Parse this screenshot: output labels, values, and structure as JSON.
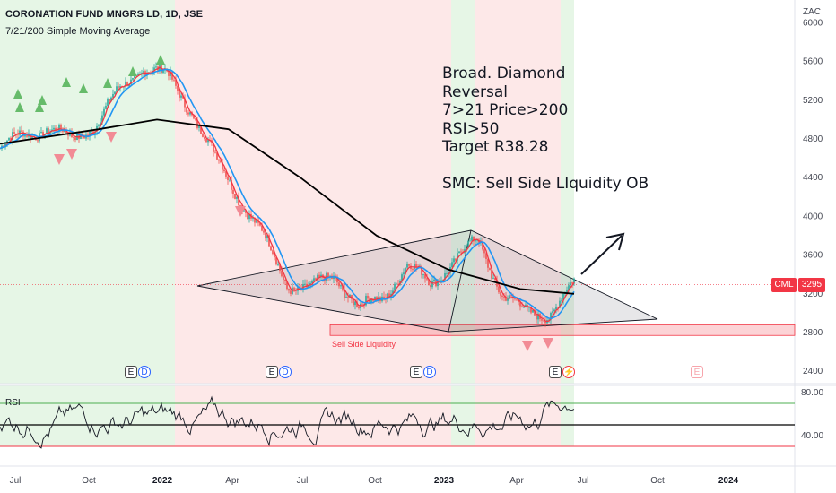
{
  "header": {
    "title": "CORONATION FUND MNGRS LD, 1D, JSE",
    "indicator": "7/21/200 Simple Moving Average"
  },
  "currency": "ZAC",
  "annotation_lines": [
    "Broad. Diamond",
    "Reversal",
    "7>21 Price>200",
    "RSI>50",
    "Target R38.28",
    "",
    "SMC: Sell Side LIquidity OB"
  ],
  "symbol_tag": "CML",
  "last_price": "3295",
  "sell_side_label": "Sell Side Liquidity",
  "rsi_label": "RSI",
  "event_markers": {
    "earnings": "E",
    "dividend": "D"
  },
  "colors": {
    "bull_candle": "#26a69a",
    "bear_candle": "#ef5350",
    "sma7": "#f23645",
    "sma21": "#2196f3",
    "sma200": "#000000",
    "bg_green": "#e6f6e6",
    "bg_red": "#fde8e8",
    "rsi_upper": "#4caf50",
    "rsi_lower": "#f23645"
  },
  "chart_data": [
    {
      "type": "candlestick",
      "title": "CORONATION FUND MNGRS LD, 1D, JSE",
      "y_axis": {
        "ticks": [
          2400,
          2800,
          3200,
          3600,
          4000,
          4400,
          4800,
          5200,
          5600,
          6000
        ],
        "range": [
          2250,
          6150
        ]
      },
      "x_axis": {
        "labels": [
          "Jul",
          "Oct",
          "2022",
          "Apr",
          "Jul",
          "Oct",
          "2023",
          "Apr",
          "Jul",
          "Oct",
          "2024"
        ]
      },
      "series": [
        {
          "name": "Price",
          "x": [
            "2021-06",
            "2021-07",
            "2021-08",
            "2021-09",
            "2021-10",
            "2021-11",
            "2021-12",
            "2022-01",
            "2022-02",
            "2022-03",
            "2022-04",
            "2022-05",
            "2022-06",
            "2022-07",
            "2022-08",
            "2022-09",
            "2022-10",
            "2022-11",
            "2022-12",
            "2023-01",
            "2023-02",
            "2023-03",
            "2023-04",
            "2023-05",
            "2023-06"
          ],
          "values": [
            4700,
            4850,
            4900,
            4800,
            4950,
            5300,
            5550,
            5450,
            5100,
            4600,
            4200,
            3800,
            3300,
            3250,
            3400,
            3050,
            3150,
            3500,
            3300,
            3550,
            3750,
            3200,
            3000,
            3000,
            3295
          ]
        },
        {
          "name": "SMA 200",
          "x": [
            "2021-06",
            "2021-10",
            "2022-01",
            "2022-04",
            "2022-07",
            "2022-10",
            "2023-01",
            "2023-04",
            "2023-06"
          ],
          "values": [
            4750,
            4900,
            5000,
            4900,
            4400,
            3800,
            3450,
            3250,
            3200
          ]
        }
      ],
      "last_price": 3295,
      "pattern": "broadening diamond",
      "sell_side_liquidity_zone": [
        2770,
        2880
      ]
    },
    {
      "type": "line",
      "title": "RSI",
      "y_axis": {
        "ticks": [
          40,
          80
        ],
        "levels": [
          70,
          50,
          30
        ]
      },
      "x_axis": {
        "labels": [
          "Jul",
          "Oct",
          "2022",
          "Apr",
          "Jul",
          "Oct",
          "2023",
          "Apr",
          "Jul",
          "Oct",
          "2024"
        ]
      },
      "last_value": 70
    }
  ]
}
